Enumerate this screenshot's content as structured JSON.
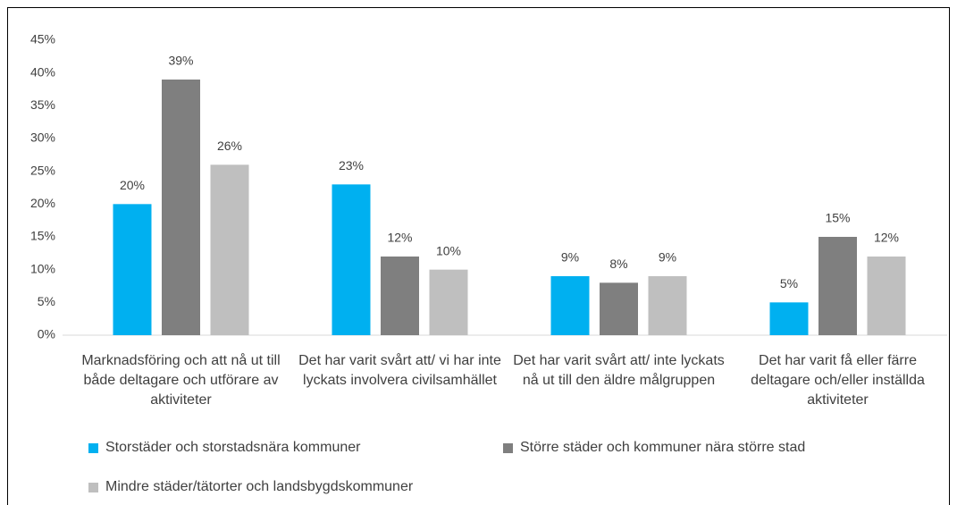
{
  "chart_data": {
    "type": "bar",
    "categories": [
      "Marknadsföring och att nå ut till både deltagare och utförare av aktiviteter",
      "Det har varit svårt att/ vi har inte lyckats involvera civilsamhället",
      "Det har varit svårt att/ inte lyckats nå ut till den äldre målgruppen",
      "Det har varit få eller färre deltagare och/eller inställda aktiviteter"
    ],
    "series": [
      {
        "name": "Storstäder och storstadsnära kommuner",
        "color": "#00b0f0",
        "values": [
          20,
          23,
          9,
          5
        ],
        "value_labels": [
          "20%",
          "23%",
          "9%",
          "5%"
        ]
      },
      {
        "name": "Större städer och kommuner nära större stad",
        "color": "#7f7f7f",
        "values": [
          39,
          12,
          8,
          15
        ],
        "value_labels": [
          "39%",
          "12%",
          "8%",
          "15%"
        ]
      },
      {
        "name": "Mindre städer/tätorter och landsbygdskommuner",
        "color": "#bfbfbf",
        "values": [
          26,
          10,
          9,
          12
        ],
        "value_labels": [
          "26%",
          "10%",
          "9%",
          "12%"
        ]
      }
    ],
    "ylim": [
      0,
      45
    ],
    "yticks": [
      {
        "value": 0,
        "label": "0%"
      },
      {
        "value": 5,
        "label": "5%"
      },
      {
        "value": 10,
        "label": "10%"
      },
      {
        "value": 15,
        "label": "15%"
      },
      {
        "value": 20,
        "label": "20%"
      },
      {
        "value": 25,
        "label": "25%"
      },
      {
        "value": 30,
        "label": "30%"
      },
      {
        "value": 35,
        "label": "35%"
      },
      {
        "value": 40,
        "label": "40%"
      },
      {
        "value": 45,
        "label": "45%"
      }
    ],
    "grid": false,
    "legend": "bottom"
  }
}
